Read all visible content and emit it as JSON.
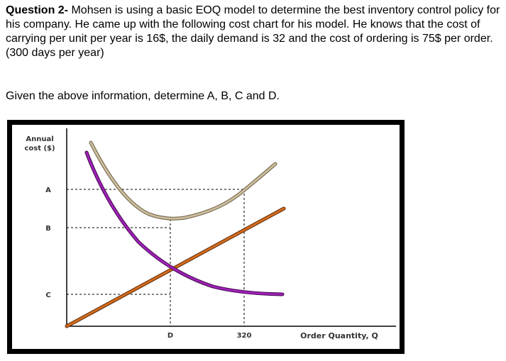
{
  "question": {
    "label": "Question 2-",
    "text": " Mohsen is using a basic EOQ model to determine the best inventory control policy for his company. He came up with the following cost chart for his model. He knows that the cost of carrying per unit per year is 16$, the daily demand is 32 and the cost of ordering is 75$ per order. (300 days per year)"
  },
  "prompt": "Given the above information, determine A, B, C and D.",
  "chart_data": {
    "type": "line",
    "ylabel_line1": "Annual",
    "ylabel_line2": "cost ($)",
    "xlabel": "Order Quantity, Q",
    "y_ticks": [
      "A",
      "B",
      "C"
    ],
    "x_ticks": [
      "D",
      "320"
    ],
    "grid": false,
    "series": [
      {
        "color": "#c8b99a"
      },
      {
        "color": "#8b1a9e"
      },
      {
        "color": "#c9661a"
      }
    ]
  }
}
